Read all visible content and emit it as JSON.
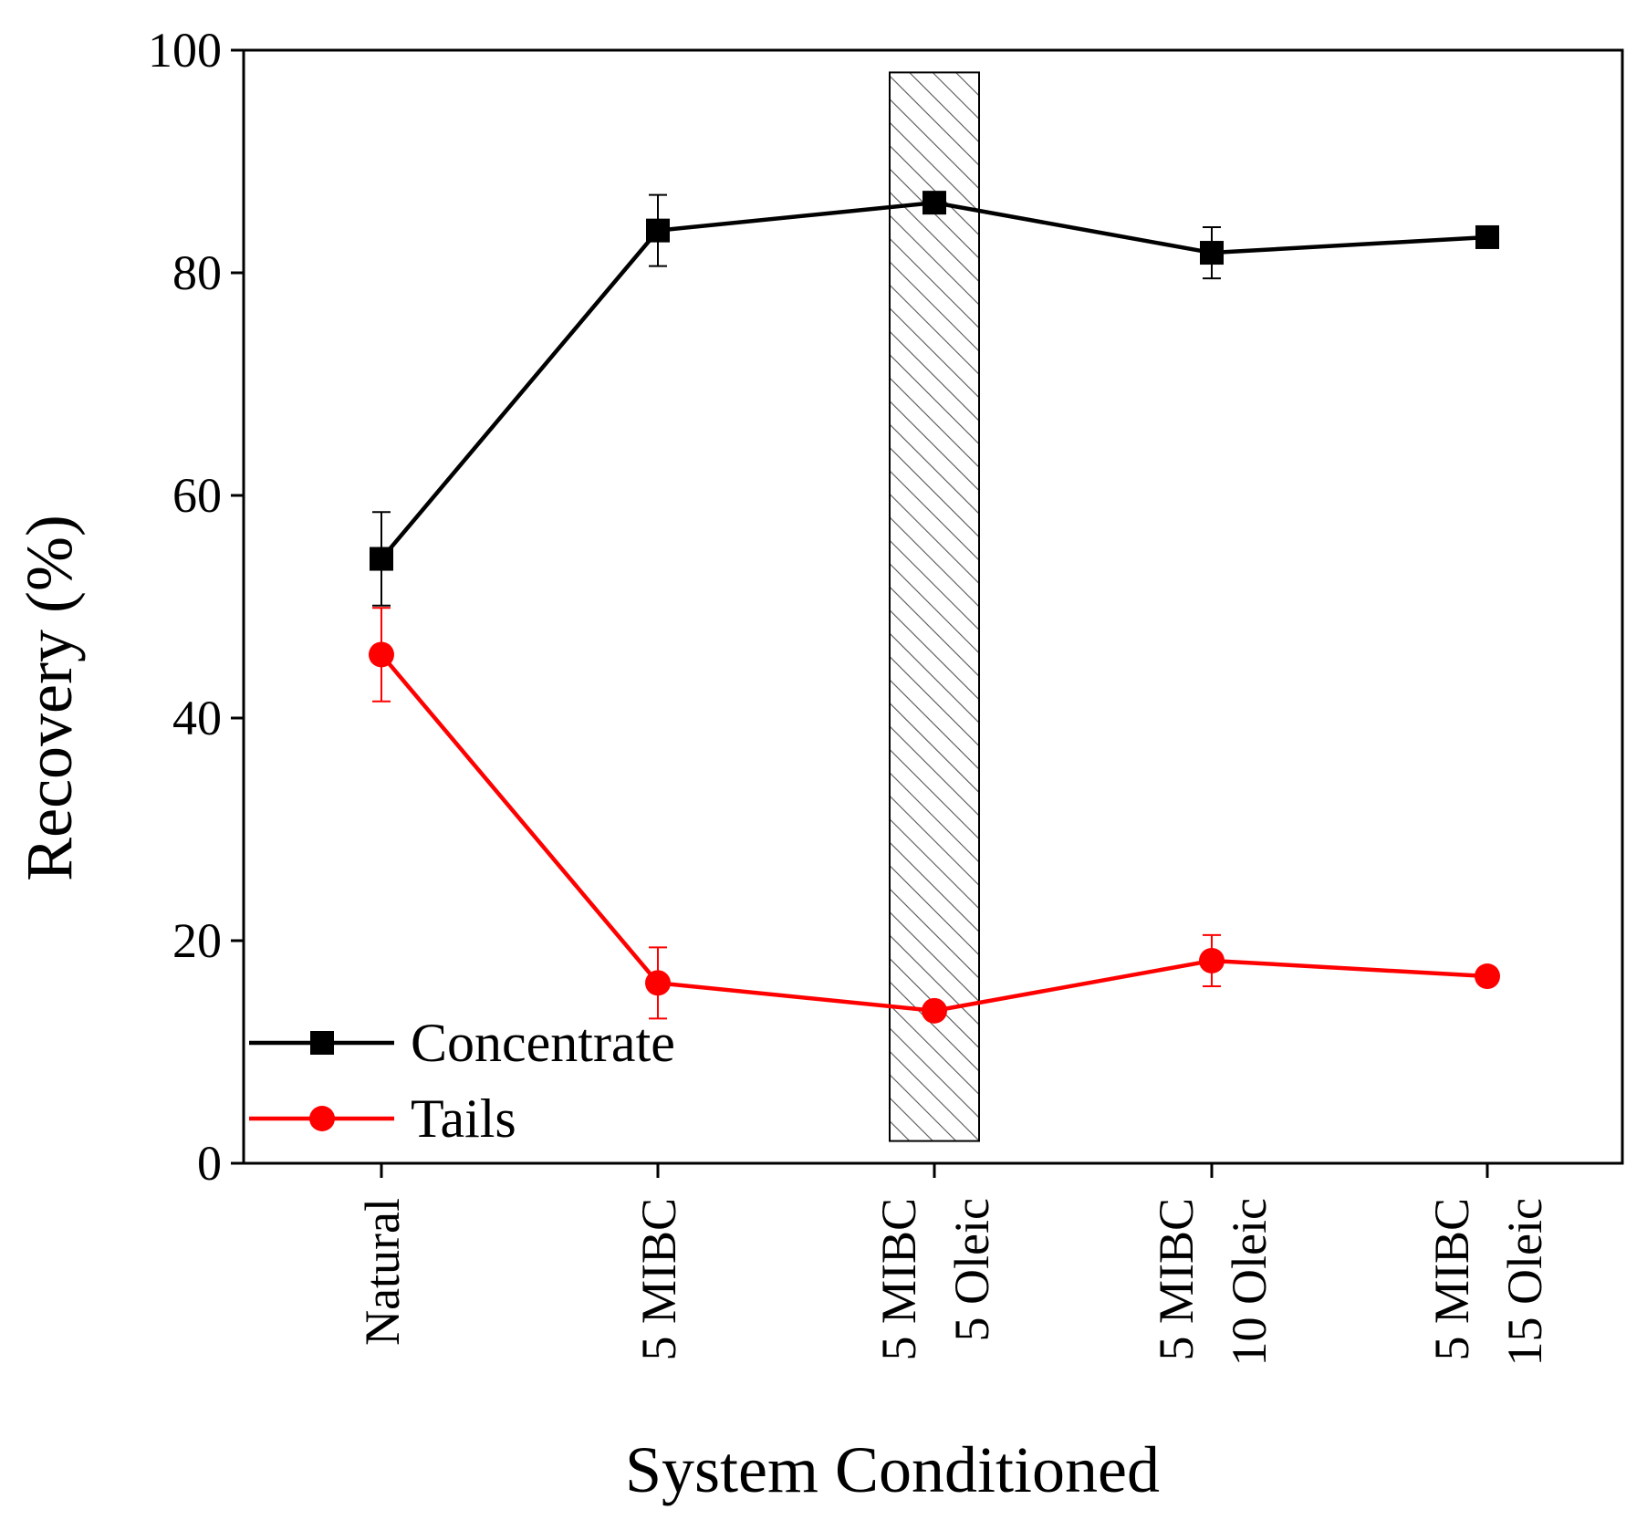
{
  "chart_data": {
    "type": "line",
    "title": "",
    "xlabel": "System Conditioned",
    "ylabel": "Recovery (%)",
    "ylim": [
      0,
      100
    ],
    "yticks": [
      0,
      20,
      40,
      60,
      80,
      100
    ],
    "categories": [
      {
        "lines": [
          "Natural"
        ]
      },
      {
        "lines": [
          "5 MIBC"
        ]
      },
      {
        "lines": [
          "5 MIBC",
          "5 Oleic"
        ]
      },
      {
        "lines": [
          "5 MIBC",
          "10 Oleic"
        ]
      },
      {
        "lines": [
          "5 MIBC",
          "15 Oleic"
        ]
      }
    ],
    "series": [
      {
        "name": "Concentrate",
        "color": "#000000",
        "marker": "square",
        "values": [
          54.3,
          83.8,
          86.3,
          81.8,
          83.2
        ],
        "errors": [
          4.2,
          3.2,
          0.9,
          2.3,
          0.4
        ]
      },
      {
        "name": "Tails",
        "color": "#ff0000",
        "marker": "circle",
        "values": [
          45.7,
          16.2,
          13.7,
          18.2,
          16.8
        ],
        "errors": [
          4.2,
          3.2,
          0.0,
          2.3,
          0.0
        ]
      }
    ],
    "highlight": {
      "category_index": 2,
      "ymin": 2,
      "ymax": 98,
      "pattern": "diagonal-hatch"
    },
    "legend": {
      "position": "bottom-left"
    },
    "grid": false
  }
}
